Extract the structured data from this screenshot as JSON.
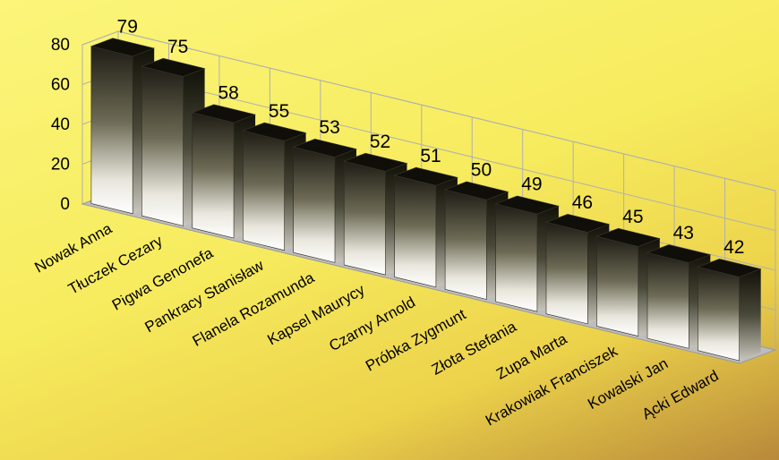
{
  "chart_data": {
    "type": "bar",
    "title": "",
    "xlabel": "",
    "ylabel": "",
    "ylim": [
      0,
      80
    ],
    "y_ticks": [
      "0",
      "20",
      "40",
      "60",
      "80"
    ],
    "grid": true,
    "view": "3d",
    "categories": [
      "Nowak Anna",
      "Tłuczek Cezary",
      "Pigwa Genonefa",
      "Pankracy Stanisław",
      "Flanela Rozamunda",
      "Kapsel Maurycy",
      "Czarny Arnold",
      "Próbka Zygmunt",
      "Złota Stefania",
      "Zupa Marta",
      "Krakowiak Franciszek",
      "Kowalski Jan",
      "Ącki Edward"
    ],
    "values": [
      79,
      75,
      58,
      55,
      53,
      52,
      51,
      50,
      49,
      46,
      45,
      43,
      42
    ],
    "colors": {
      "bar_dark": "#1e1c14",
      "bar_light": "#ffffff",
      "floor": "#bdbdbd",
      "grid": "#b0b0b0"
    }
  }
}
